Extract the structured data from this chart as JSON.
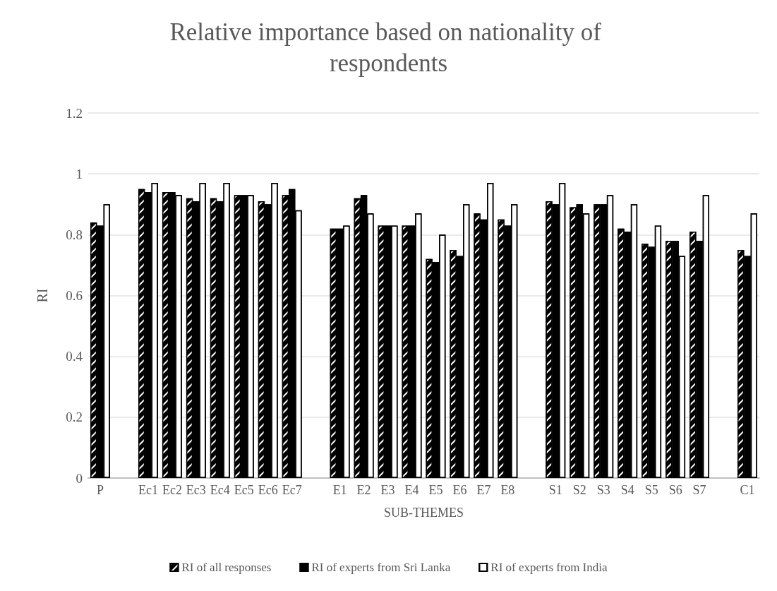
{
  "chart_data": {
    "type": "bar",
    "title": "Relative importance based on nationality of respondents",
    "xlabel": "SUB-THEMES",
    "ylabel": "RI",
    "categories": [
      "P",
      null,
      "Ec1",
      "Ec2",
      "Ec3",
      "Ec4",
      "Ec5",
      "Ec6",
      "Ec7",
      null,
      "E1",
      "E2",
      "E3",
      "E4",
      "E5",
      "E6",
      "E7",
      "E8",
      null,
      "S1",
      "S2",
      "S3",
      "S4",
      "S5",
      "S6",
      "S7",
      null,
      "C1"
    ],
    "series": [
      {
        "name": "RI of all responses",
        "color": "#000000",
        "values": [
          0.84,
          null,
          0.95,
          0.94,
          0.92,
          0.92,
          0.93,
          0.91,
          0.93,
          null,
          0.82,
          0.92,
          0.83,
          0.83,
          0.72,
          0.75,
          0.87,
          0.85,
          null,
          0.91,
          0.89,
          0.9,
          0.82,
          0.77,
          0.78,
          0.81,
          null,
          0.75
        ]
      },
      {
        "name": "RI of experts from Sri Lanka",
        "color": "#000000",
        "values": [
          0.83,
          null,
          0.94,
          0.94,
          0.91,
          0.91,
          0.93,
          0.9,
          0.95,
          null,
          0.82,
          0.93,
          0.83,
          0.83,
          0.71,
          0.73,
          0.85,
          0.83,
          null,
          0.9,
          0.9,
          0.9,
          0.81,
          0.76,
          0.78,
          0.78,
          null,
          0.73
        ]
      },
      {
        "name": "RI of experts from India",
        "color": "#ffffff",
        "values": [
          0.9,
          null,
          0.97,
          0.93,
          0.97,
          0.97,
          0.93,
          0.97,
          0.88,
          null,
          0.83,
          0.87,
          0.83,
          0.87,
          0.8,
          0.9,
          0.97,
          0.9,
          null,
          0.97,
          0.87,
          0.93,
          0.9,
          0.83,
          0.73,
          0.93,
          null,
          0.87
        ]
      }
    ],
    "ylim": [
      0,
      1.2
    ],
    "yticks": [
      0,
      0.2,
      0.4,
      0.6,
      0.8,
      1,
      1.2
    ],
    "grid": "y",
    "legend": "bottom"
  }
}
